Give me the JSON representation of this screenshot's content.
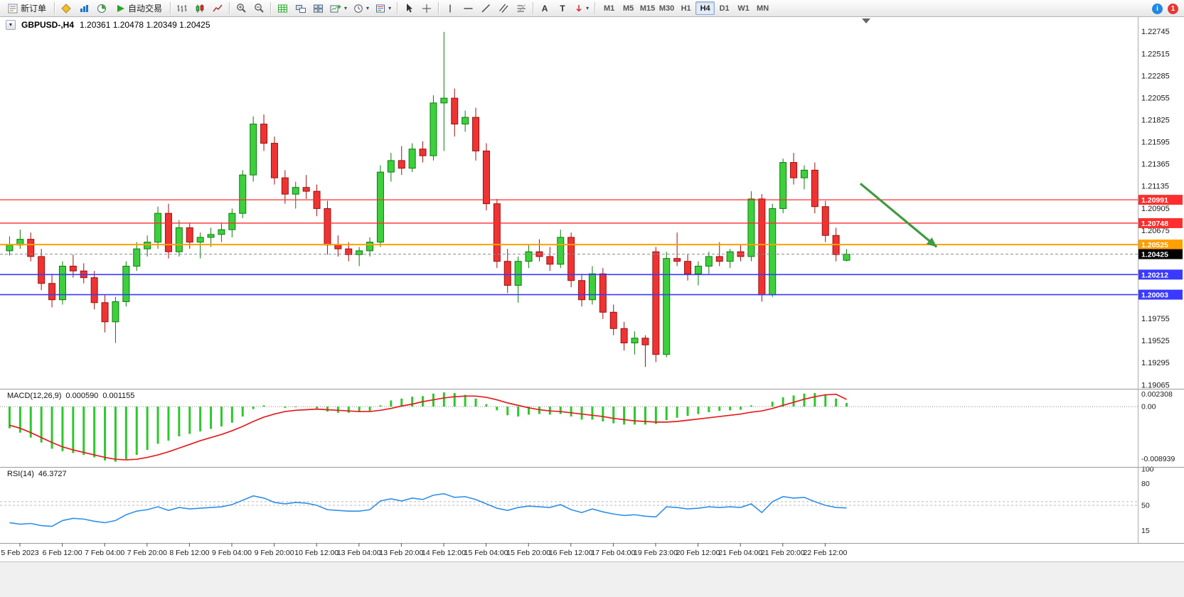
{
  "toolbar": {
    "new_order_label": "新订单",
    "autotrading_label": "自动交易",
    "timeframes": [
      "M1",
      "M5",
      "M15",
      "M30",
      "H1",
      "H4",
      "D1",
      "W1",
      "MN"
    ],
    "active_timeframe": "H4",
    "notification_count": "1"
  },
  "chart": {
    "title": "GBPUSD-,H4",
    "ohlc_text": "1.20361 1.20478 1.20349 1.20425"
  },
  "chart_data": {
    "type": "candlestick+indicators",
    "symbol": "GBPUSD-",
    "timeframe": "H4",
    "price_range": {
      "max": 1.2288,
      "min": 1.1903
    },
    "price_axis_ticks": [
      "1.22745",
      "1.22515",
      "1.22285",
      "1.22055",
      "1.21825",
      "1.21595",
      "1.21365",
      "1.21135",
      "1.20905",
      "1.20675",
      "1.19755",
      "1.19525",
      "1.19295",
      "1.19065"
    ],
    "colors": {
      "candle_up_fill": "#3cd13c",
      "candle_up_stroke": "#0e7a0e",
      "candle_down_fill": "#ef3333",
      "candle_down_stroke": "#9d0f0f",
      "macd_hist": "#2ec72e",
      "macd_signal": "#e51c1c",
      "rsi_line": "#2f8fe8"
    },
    "candles": [
      [
        1.2046,
        1.2061,
        1.2041,
        1.2052
      ],
      [
        1.2052,
        1.2068,
        1.2048,
        1.2058
      ],
      [
        1.2058,
        1.2065,
        1.2035,
        1.204
      ],
      [
        1.204,
        1.2048,
        1.2005,
        1.2012
      ],
      [
        1.2012,
        1.2022,
        1.1987,
        1.1995
      ],
      [
        1.1995,
        1.2035,
        1.199,
        1.203
      ],
      [
        1.203,
        1.2042,
        1.2018,
        1.2025
      ],
      [
        1.2025,
        1.2033,
        1.2012,
        1.2018
      ],
      [
        1.2018,
        1.2025,
        1.1985,
        1.1992
      ],
      [
        1.1992,
        1.2,
        1.1961,
        1.1972
      ],
      [
        1.1972,
        1.1998,
        1.195,
        1.1993
      ],
      [
        1.1993,
        1.2035,
        1.1988,
        1.203
      ],
      [
        1.203,
        1.2055,
        1.2025,
        1.2048
      ],
      [
        1.2048,
        1.2062,
        1.204,
        1.2055
      ],
      [
        1.2055,
        1.2092,
        1.2048,
        1.2085
      ],
      [
        1.2085,
        1.2095,
        1.2038,
        1.2045
      ],
      [
        1.2045,
        1.2078,
        1.204,
        1.207
      ],
      [
        1.207,
        1.2075,
        1.2048,
        1.2055
      ],
      [
        1.2055,
        1.2065,
        1.2038,
        1.206
      ],
      [
        1.206,
        1.207,
        1.205,
        1.2063
      ],
      [
        1.2063,
        1.2075,
        1.2055,
        1.2068
      ],
      [
        1.2068,
        1.209,
        1.206,
        1.2085
      ],
      [
        1.2085,
        1.213,
        1.208,
        1.2125
      ],
      [
        1.2125,
        1.2186,
        1.2118,
        1.2178
      ],
      [
        1.2178,
        1.2188,
        1.215,
        1.2158
      ],
      [
        1.2158,
        1.2165,
        1.2115,
        1.2122
      ],
      [
        1.2122,
        1.213,
        1.2095,
        1.2105
      ],
      [
        1.2105,
        1.2118,
        1.209,
        1.2112
      ],
      [
        1.2112,
        1.2125,
        1.21,
        1.2108
      ],
      [
        1.2108,
        1.2115,
        1.2082,
        1.209
      ],
      [
        1.209,
        1.2098,
        1.2042,
        1.2052
      ],
      [
        1.2052,
        1.2062,
        1.204,
        1.2048
      ],
      [
        1.2048,
        1.2055,
        1.2035,
        1.2042
      ],
      [
        1.2042,
        1.205,
        1.203,
        1.2046
      ],
      [
        1.2046,
        1.206,
        1.204,
        1.2055
      ],
      [
        1.2055,
        1.2135,
        1.205,
        1.2128
      ],
      [
        1.2128,
        1.2148,
        1.2118,
        1.214
      ],
      [
        1.214,
        1.2155,
        1.2125,
        1.2132
      ],
      [
        1.2132,
        1.2158,
        1.2128,
        1.2152
      ],
      [
        1.2152,
        1.216,
        1.2138,
        1.2145
      ],
      [
        1.2145,
        1.2208,
        1.214,
        1.22
      ],
      [
        1.22,
        1.2274,
        1.215,
        1.2205
      ],
      [
        1.2205,
        1.2215,
        1.2165,
        1.2178
      ],
      [
        1.2178,
        1.2192,
        1.217,
        1.2185
      ],
      [
        1.2185,
        1.2195,
        1.214,
        1.215
      ],
      [
        1.215,
        1.2158,
        1.2088,
        1.2095
      ],
      [
        1.2095,
        1.21,
        1.2028,
        1.2035
      ],
      [
        1.2035,
        1.2048,
        1.2002,
        1.201
      ],
      [
        1.201,
        1.204,
        1.1992,
        1.2035
      ],
      [
        1.2035,
        1.2052,
        1.2028,
        1.2045
      ],
      [
        1.2045,
        1.2058,
        1.2035,
        1.204
      ],
      [
        1.204,
        1.205,
        1.2025,
        1.2032
      ],
      [
        1.2032,
        1.2068,
        1.2028,
        1.206
      ],
      [
        1.206,
        1.2065,
        1.2008,
        1.2015
      ],
      [
        1.2015,
        1.2022,
        1.1988,
        1.1995
      ],
      [
        1.1995,
        1.203,
        1.199,
        1.2022
      ],
      [
        1.2022,
        1.2028,
        1.1975,
        1.1982
      ],
      [
        1.1982,
        1.199,
        1.1958,
        1.1965
      ],
      [
        1.1965,
        1.1972,
        1.1942,
        1.195
      ],
      [
        1.195,
        1.1962,
        1.1938,
        1.1955
      ],
      [
        1.1955,
        1.1958,
        1.1925,
        1.1948
      ],
      [
        1.2045,
        1.205,
        1.193,
        1.1938
      ],
      [
        1.1938,
        1.2045,
        1.1935,
        1.2038
      ],
      [
        1.2038,
        1.2065,
        1.203,
        1.2035
      ],
      [
        1.2035,
        1.2042,
        1.2015,
        1.2022
      ],
      [
        1.2022,
        1.2035,
        1.201,
        1.203
      ],
      [
        1.203,
        1.2045,
        1.2022,
        1.204
      ],
      [
        1.204,
        1.2055,
        1.203,
        1.2035
      ],
      [
        1.2035,
        1.2048,
        1.2028,
        1.2045
      ],
      [
        1.2045,
        1.2052,
        1.2035,
        1.204
      ],
      [
        1.204,
        1.2108,
        1.2035,
        1.21
      ],
      [
        1.21,
        1.2105,
        1.1993,
        1.2
      ],
      [
        1.2,
        1.2095,
        1.1998,
        1.209
      ],
      [
        1.209,
        1.2142,
        1.2085,
        1.2138
      ],
      [
        1.2138,
        1.2148,
        1.2115,
        1.2122
      ],
      [
        1.2122,
        1.2135,
        1.211,
        1.213
      ],
      [
        1.213,
        1.2138,
        1.2085,
        1.2092
      ],
      [
        1.2092,
        1.2098,
        1.2055,
        1.2062
      ],
      [
        1.2062,
        1.207,
        1.2035,
        1.2042
      ],
      [
        1.20361,
        1.20478,
        1.20349,
        1.20425
      ]
    ],
    "levels": [
      {
        "label": "1.20991",
        "price": 1.20991,
        "color": "#ff2d2d",
        "width": 1.3
      },
      {
        "label": "1.20748",
        "price": 1.20748,
        "color": "#ff2d2d",
        "width": 1.3
      },
      {
        "label": "1.20525",
        "price": 1.20525,
        "color": "#ff9f00",
        "width": 2
      },
      {
        "label": "1.20425",
        "price": 1.20425,
        "color": "#000000",
        "line_color": "#8a8a8a",
        "width": 1,
        "style": "dashed"
      },
      {
        "label": "1.20212",
        "price": 1.20212,
        "color": "#3a3aff",
        "width": 1.6
      },
      {
        "label": "1.20003",
        "price": 1.20003,
        "color": "#3a3aff",
        "width": 1.6
      }
    ],
    "annotation_arrow": {
      "from_bar": 80.3,
      "from_price": 1.2116,
      "to_bar": 87.5,
      "to_price": 1.205,
      "color": "#3f9b3f"
    },
    "macd": {
      "label": "MACD(12,26,9)",
      "value_main": "0.000590",
      "value_signal": "0.001155",
      "axis": {
        "max": 0.002308,
        "min": -0.008939,
        "max_label": "0.002308",
        "zero_label": "0.00",
        "min_label": "-0.008939"
      },
      "histogram": [
        -0.0035,
        -0.0042,
        -0.005,
        -0.0058,
        -0.0068,
        -0.0072,
        -0.0075,
        -0.0078,
        -0.0082,
        -0.0087,
        -0.0089,
        -0.0085,
        -0.0078,
        -0.007,
        -0.006,
        -0.0055,
        -0.0048,
        -0.0044,
        -0.004,
        -0.0036,
        -0.0032,
        -0.0026,
        -0.0016,
        -0.0004,
        0.0002,
        0.0,
        -0.0002,
        -0.0001,
        0.0,
        -0.0003,
        -0.0008,
        -0.001,
        -0.001,
        -0.0009,
        -0.0007,
        0.0002,
        0.001,
        0.0013,
        0.0016,
        0.0017,
        0.0021,
        0.0023,
        0.0022,
        0.0019,
        0.0013,
        0.0004,
        -0.0006,
        -0.0014,
        -0.0016,
        -0.0013,
        -0.0012,
        -0.0013,
        -0.0012,
        -0.0016,
        -0.0021,
        -0.0021,
        -0.0024,
        -0.0027,
        -0.0029,
        -0.0029,
        -0.0029,
        -0.0028,
        -0.0022,
        -0.0018,
        -0.0015,
        -0.0012,
        -0.0009,
        -0.0007,
        -0.0006,
        -0.0005,
        0.0002,
        0.0,
        0.0008,
        0.0015,
        0.0018,
        0.0021,
        0.0022,
        0.002,
        0.0013,
        0.00059
      ],
      "signal": [
        -0.003,
        -0.0035,
        -0.0042,
        -0.005,
        -0.0058,
        -0.0065,
        -0.007,
        -0.0074,
        -0.0078,
        -0.0082,
        -0.0085,
        -0.0086,
        -0.0085,
        -0.0082,
        -0.0078,
        -0.0073,
        -0.0067,
        -0.0061,
        -0.0055,
        -0.005,
        -0.0045,
        -0.0039,
        -0.0032,
        -0.0024,
        -0.0017,
        -0.0012,
        -0.0008,
        -0.0006,
        -0.0005,
        -0.0004,
        -0.0005,
        -0.0006,
        -0.0007,
        -0.0008,
        -0.0008,
        -0.0006,
        -0.0003,
        0.0001,
        0.0004,
        0.0008,
        0.0011,
        0.0014,
        0.0016,
        0.0017,
        0.0017,
        0.0015,
        0.0011,
        0.0006,
        0.0002,
        -0.0002,
        -0.0005,
        -0.0007,
        -0.0008,
        -0.001,
        -0.0012,
        -0.0014,
        -0.0016,
        -0.0019,
        -0.0021,
        -0.0023,
        -0.0024,
        -0.0025,
        -0.0025,
        -0.0024,
        -0.0022,
        -0.002,
        -0.0018,
        -0.0016,
        -0.0014,
        -0.0012,
        -0.0009,
        -0.0007,
        -0.0003,
        0.0002,
        0.0007,
        0.0012,
        0.0016,
        0.0019,
        0.002,
        0.001155
      ]
    },
    "rsi": {
      "label": "RSI(14)",
      "value": "46.3727",
      "axis_labels": [
        "100",
        "80",
        "50",
        "15"
      ],
      "levels": [
        55,
        50
      ],
      "values": [
        26,
        24,
        25,
        22,
        21,
        29,
        32,
        31,
        28,
        26,
        29,
        37,
        42,
        44,
        48,
        43,
        47,
        45,
        46,
        47,
        48,
        51,
        57,
        63,
        60,
        54,
        52,
        54,
        53,
        50,
        44,
        43,
        42,
        42,
        44,
        56,
        59,
        56,
        60,
        58,
        64,
        66,
        61,
        62,
        58,
        52,
        46,
        43,
        47,
        49,
        48,
        47,
        51,
        44,
        40,
        45,
        41,
        38,
        36,
        37,
        35,
        34,
        48,
        47,
        45,
        46,
        48,
        47,
        48,
        47,
        52,
        40,
        55,
        62,
        60,
        61,
        55,
        50,
        47,
        46.3727
      ]
    },
    "time_labels": [
      "5 Feb 2023",
      "6 Feb 12:00",
      "7 Feb 04:00",
      "7 Feb 20:00",
      "8 Feb 12:00",
      "9 Feb 04:00",
      "9 Feb 20:00",
      "10 Feb 12:00",
      "13 Feb 04:00",
      "13 Feb 20:00",
      "14 Feb 12:00",
      "15 Feb 04:00",
      "15 Feb 20:00",
      "16 Feb 12:00",
      "17 Feb 04:00",
      "19 Feb 23:00",
      "20 Feb 12:00",
      "21 Feb 04:00",
      "21 Feb 20:00",
      "22 Feb 12:00"
    ]
  }
}
